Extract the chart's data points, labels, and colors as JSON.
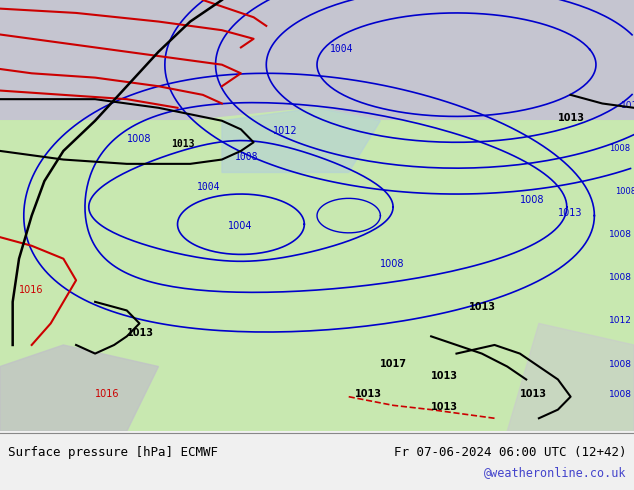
{
  "title_left": "Surface pressure [hPa] ECMWF",
  "title_right": "Fr 07-06-2024 06:00 UTC (12+42)",
  "watermark": "@weatheronline.co.uk",
  "bg_color": "#d4eac8",
  "land_color": "#c8e6b0",
  "sea_color": "#d0e8f0",
  "gray_color": "#c0c0c8",
  "bottom_bar_color": "#f0f0f0",
  "text_color_left": "#000000",
  "text_color_right": "#000000",
  "watermark_color": "#4444cc",
  "contour_blue": "#0000cc",
  "contour_black": "#000000",
  "contour_red": "#cc0000",
  "figsize": [
    6.34,
    4.9
  ],
  "dpi": 100
}
